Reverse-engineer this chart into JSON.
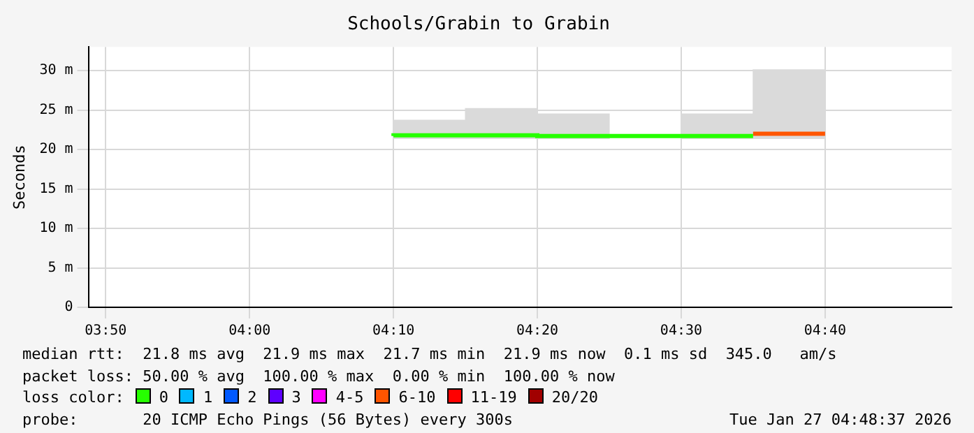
{
  "chart_data": {
    "type": "step",
    "title": "Schools/Grabin to Grabin",
    "ylabel": "Seconds",
    "legend_title": "loss color:",
    "legend": "bottom",
    "grid": true,
    "xlim": [
      3.8133,
      4.8133
    ],
    "xticks": [
      {
        "value": 3.8333,
        "label": "03:50"
      },
      {
        "value": 4,
        "label": "04:00"
      },
      {
        "value": 4.1667,
        "label": "04:10"
      },
      {
        "value": 4.3333,
        "label": "04:20"
      },
      {
        "value": 4.5,
        "label": "04:30"
      },
      {
        "value": 4.6667,
        "label": "04:40"
      }
    ],
    "ylim": [
      0,
      33
    ],
    "yticks": [
      0,
      {
        "value": 5,
        "label": "5 m"
      },
      {
        "value": 10,
        "label": "10 m"
      },
      {
        "value": 15,
        "label": "15 m"
      },
      {
        "value": 20,
        "label": "20 m"
      },
      {
        "value": 25,
        "label": "25 m"
      },
      {
        "value": 30,
        "label": "30 m"
      }
    ],
    "series": [
      {
        "type": "bar",
        "color": "#dadada",
        "x": [
          4.2083,
          4.2917,
          4.375,
          4.4583,
          4.5417,
          4.625
        ],
        "base": [
          21.4,
          21.4,
          21.4,
          null,
          21.4,
          21.4
        ],
        "values": [
          2.3,
          3.8,
          3.1,
          null,
          3.1,
          8.7
        ]
      },
      {
        "name": "0",
        "color": "#26ff00",
        "x": [
          4.1667,
          4.25,
          4.3333,
          4.4167,
          4.5,
          4.5833
        ],
        "values": [
          21.7,
          21.8,
          21.8,
          21.7,
          21.7,
          21.7
        ]
      },
      {
        "name": "1",
        "color": "#00b8ff"
      },
      {
        "name": "2",
        "color": "#0059ff"
      },
      {
        "name": "3",
        "color": "#5e00ff"
      },
      {
        "name": "4-5",
        "color": "#ff00ff"
      },
      {
        "name": "6-10",
        "color": "#ff5500",
        "x": [
          4.5833,
          4.6667
        ],
        "values": [
          22.0,
          22.0
        ]
      },
      {
        "name": "11-19",
        "color": "#ff0000"
      },
      {
        "name": "20/20",
        "color": "#a10000"
      }
    ],
    "annotations": [
      "median rtt:  21.8 ms avg  21.9 ms max  21.7 ms min  21.9 ms now  0.1 ms sd  345.0   am/s",
      "packet loss: 50.00 % avg  100.00 % max  0.00 % min  100.00 % now",
      "probe:       20 ICMP Echo Pings (56 Bytes) every 300s",
      "Tue Jan 27 04:48:37 2026"
    ]
  }
}
